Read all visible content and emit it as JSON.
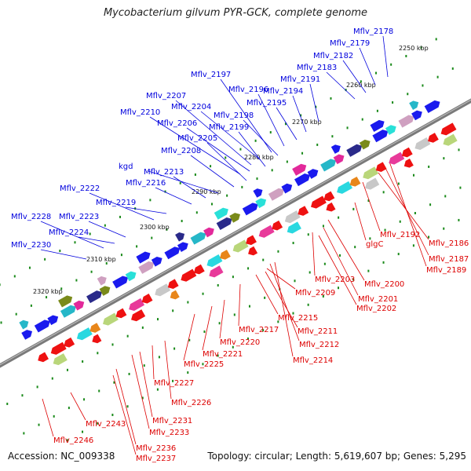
{
  "title": "Mycobacterium gilvum PYR-GCK, complete genome",
  "accession": "Accession: NC_009338",
  "summary": "Topology: circular; Length: 5,619,607 bp; Genes: 5,295",
  "colors": {
    "forward_label": "#0000dd",
    "reverse_label": "#dd0000",
    "forward_gene": "#1a1aee",
    "reverse_gene": "#ee1111",
    "backbone": "#7a7a7a",
    "tick": "#1a8a1a"
  },
  "ticks": [
    "2250 kbp",
    "2260 kbp",
    "2270 kbp",
    "2280 kbp",
    "2290 kbp",
    "2300 kbp",
    "2310 kbp",
    "2320 kbp"
  ],
  "forward_labels": [
    "Mflv_2178",
    "Mflv_2179",
    "Mflv_2182",
    "Mflv_2183",
    "Mflv_2191",
    "Mflv_2194",
    "Mflv_2195",
    "Mflv_2196",
    "Mflv_2197",
    "Mflv_2207",
    "Mflv_2204",
    "Mflv_2198",
    "Mflv_2210",
    "Mflv_2206",
    "Mflv_2199",
    "Mflv_2205",
    "Mflv_2208",
    "kgd",
    "Mflv_2213",
    "Mflv_2216",
    "Mflv_2222",
    "Mflv_2219",
    "Mflv_2228",
    "Mflv_2223",
    "Mflv_2224",
    "Mflv_2230"
  ],
  "reverse_labels": [
    "Mflv_2192",
    "Mflv_2186",
    "Mflv_2187",
    "Mflv_2189",
    "glgC",
    "Mflv_2200",
    "Mflv_2203",
    "Mflv_2201",
    "Mflv_2202",
    "Mflv_2209",
    "Mflv_2215",
    "Mflv_2211",
    "Mflv_2217",
    "Mflv_2212",
    "Mflv_2220",
    "Mflv_2221",
    "Mflv_2214",
    "Mflv_2225",
    "Mflv_2227",
    "Mflv_2226",
    "Mflv_2231",
    "Mflv_2243",
    "Mflv_2233",
    "Mflv_2246",
    "Mflv_2236",
    "Mflv_2237"
  ]
}
